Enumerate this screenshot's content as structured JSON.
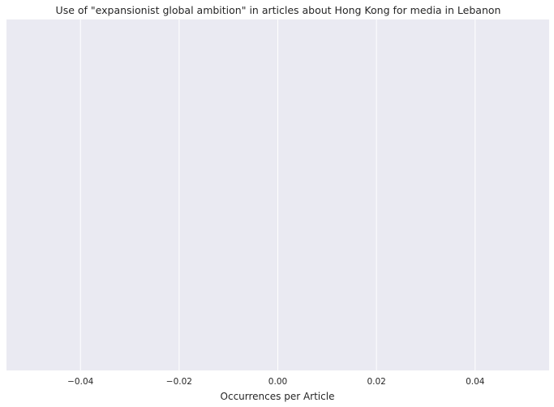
{
  "chart_data": {
    "type": "bar",
    "orientation": "horizontal",
    "title": "Use of \"expansionist global ambition\" in articles about Hong Kong for media in Lebanon",
    "xlabel": "Occurrences per Article",
    "ylabel": "",
    "categories": [],
    "values": [],
    "xlim": [
      -0.055,
      0.055
    ],
    "xticks": [
      -0.04,
      -0.02,
      0.0,
      0.02,
      0.04
    ],
    "xtick_labels": [
      "−0.04",
      "−0.02",
      "0.00",
      "0.02",
      "0.04"
    ],
    "grid": true,
    "background_color": "#eaeaf2",
    "grid_color": "#ffffff",
    "text_color": "#262626"
  }
}
